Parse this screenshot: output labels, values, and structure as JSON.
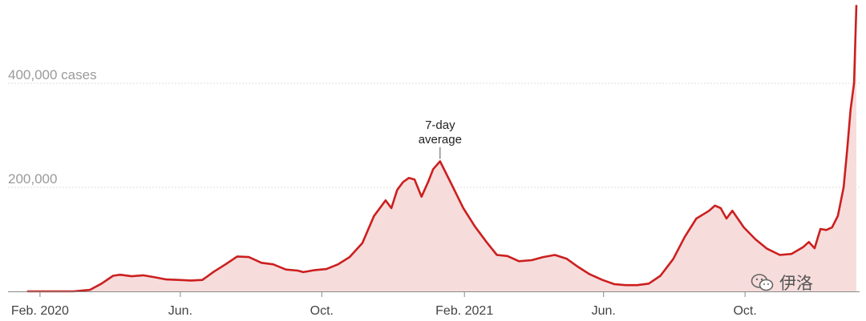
{
  "chart_data": {
    "type": "area",
    "title": "",
    "xlabel": "",
    "ylabel": "",
    "ylim": [
      0,
      550000
    ],
    "y_ticks": [
      {
        "value": 200000,
        "label": "200,000"
      },
      {
        "value": 400000,
        "label": "400,000 cases"
      }
    ],
    "x_ticks": [
      {
        "value": "2020-02-01",
        "label": "Feb. 2020"
      },
      {
        "value": "2020-06-01",
        "label": "Jun."
      },
      {
        "value": "2020-10-01",
        "label": "Oct."
      },
      {
        "value": "2021-02-01",
        "label": "Feb. 2021"
      },
      {
        "value": "2021-06-01",
        "label": "Jun."
      },
      {
        "value": "2021-10-01",
        "label": "Oct."
      }
    ],
    "x_range": [
      "2020-01-21",
      "2022-01-05"
    ],
    "grid": true,
    "annotation": {
      "date": "2021-01-11",
      "value": 250000,
      "lines": [
        "7-day",
        "average"
      ]
    },
    "colors": {
      "line": "#cc1f1f",
      "fill": "#f7dcdc",
      "grid": "#dddddd"
    },
    "series": [
      {
        "points": [
          [
            "2020-01-21",
            0
          ],
          [
            "2020-03-01",
            0
          ],
          [
            "2020-03-15",
            3000
          ],
          [
            "2020-03-25",
            15000
          ],
          [
            "2020-04-04",
            30000
          ],
          [
            "2020-04-10",
            32000
          ],
          [
            "2020-04-20",
            29000
          ],
          [
            "2020-04-30",
            31000
          ],
          [
            "2020-05-10",
            27000
          ],
          [
            "2020-05-20",
            23000
          ],
          [
            "2020-05-31",
            22000
          ],
          [
            "2020-06-10",
            21000
          ],
          [
            "2020-06-20",
            22000
          ],
          [
            "2020-06-30",
            38000
          ],
          [
            "2020-07-10",
            52000
          ],
          [
            "2020-07-20",
            67000
          ],
          [
            "2020-07-30",
            66000
          ],
          [
            "2020-08-10",
            55000
          ],
          [
            "2020-08-20",
            52000
          ],
          [
            "2020-08-31",
            42000
          ],
          [
            "2020-09-10",
            40000
          ],
          [
            "2020-09-15",
            37000
          ],
          [
            "2020-09-25",
            41000
          ],
          [
            "2020-10-05",
            43000
          ],
          [
            "2020-10-15",
            52000
          ],
          [
            "2020-10-25",
            66000
          ],
          [
            "2020-11-05",
            93000
          ],
          [
            "2020-11-15",
            145000
          ],
          [
            "2020-11-25",
            175000
          ],
          [
            "2020-11-30",
            160000
          ],
          [
            "2020-12-05",
            195000
          ],
          [
            "2020-12-10",
            210000
          ],
          [
            "2020-12-15",
            218000
          ],
          [
            "2020-12-20",
            215000
          ],
          [
            "2020-12-26",
            182000
          ],
          [
            "2021-01-01",
            212000
          ],
          [
            "2021-01-05",
            235000
          ],
          [
            "2021-01-11",
            250000
          ],
          [
            "2021-01-20",
            210000
          ],
          [
            "2021-01-31",
            160000
          ],
          [
            "2021-02-10",
            125000
          ],
          [
            "2021-02-20",
            95000
          ],
          [
            "2021-03-01",
            70000
          ],
          [
            "2021-03-10",
            68000
          ],
          [
            "2021-03-20",
            58000
          ],
          [
            "2021-03-31",
            60000
          ],
          [
            "2021-04-10",
            66000
          ],
          [
            "2021-04-20",
            70000
          ],
          [
            "2021-04-30",
            63000
          ],
          [
            "2021-05-10",
            47000
          ],
          [
            "2021-05-20",
            33000
          ],
          [
            "2021-05-31",
            22000
          ],
          [
            "2021-06-10",
            14000
          ],
          [
            "2021-06-20",
            12000
          ],
          [
            "2021-06-30",
            12000
          ],
          [
            "2021-07-10",
            15000
          ],
          [
            "2021-07-20",
            30000
          ],
          [
            "2021-07-31",
            62000
          ],
          [
            "2021-08-10",
            105000
          ],
          [
            "2021-08-20",
            140000
          ],
          [
            "2021-08-31",
            155000
          ],
          [
            "2021-09-05",
            165000
          ],
          [
            "2021-09-10",
            160000
          ],
          [
            "2021-09-15",
            140000
          ],
          [
            "2021-09-20",
            155000
          ],
          [
            "2021-09-30",
            123000
          ],
          [
            "2021-10-10",
            100000
          ],
          [
            "2021-10-20",
            82000
          ],
          [
            "2021-10-31",
            70000
          ],
          [
            "2021-11-10",
            72000
          ],
          [
            "2021-11-20",
            85000
          ],
          [
            "2021-11-25",
            95000
          ],
          [
            "2021-11-30",
            83000
          ],
          [
            "2021-12-05",
            120000
          ],
          [
            "2021-12-10",
            118000
          ],
          [
            "2021-12-15",
            123000
          ],
          [
            "2021-12-20",
            145000
          ],
          [
            "2021-12-25",
            200000
          ],
          [
            "2021-12-28",
            270000
          ],
          [
            "2021-12-31",
            350000
          ],
          [
            "2022-01-03",
            400000
          ],
          [
            "2022-01-05",
            550000
          ]
        ]
      }
    ]
  },
  "watermark": {
    "text": "伊洛",
    "icon": "wechat-icon"
  }
}
